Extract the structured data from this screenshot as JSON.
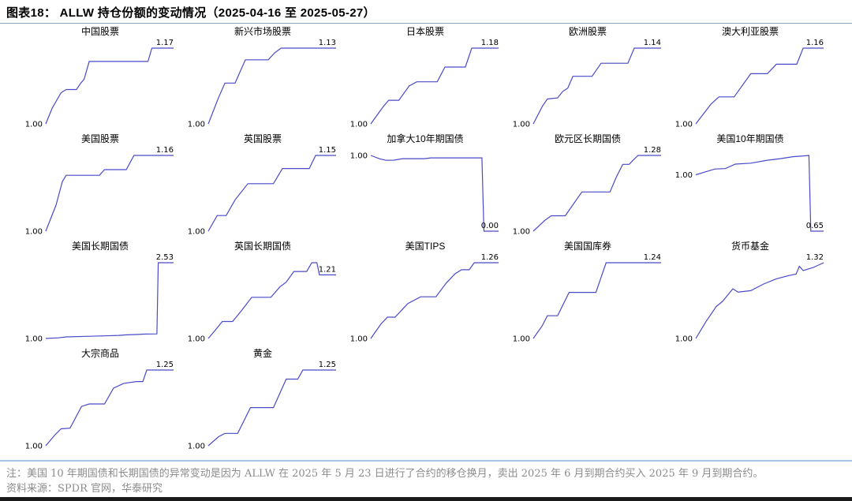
{
  "header": {
    "title": "图表18：  ALLW 持仓份额的变动情况（2025-04-16 至 2025-05-27）"
  },
  "footer": {
    "note": "注：美国 10 年期国债和长期国债的异常变动是因为 ALLW 在 2025 年 5 月 23 日进行了合约的移仓换月，卖出 2025 年 6 月到期合约买入 2025 年 9 月到期合约。",
    "source": "资料来源：SPDR 官网，华泰研究"
  },
  "style": {
    "line_color": "#4A4AC8",
    "title_rule_color": "#8CA8C6",
    "note_rule_color": "#A9C7E7",
    "note_text_color": "#8C8C8C",
    "bottom_bar_color": "#1A1A1A"
  },
  "layout": {
    "columns": 5,
    "rows": 4,
    "grid": false,
    "axes_visible": false,
    "date_range": [
      "2025-04-16",
      "2025-05-27"
    ]
  },
  "chart_data": [
    {
      "type": "line",
      "title": "中国股票",
      "start_label": "1.00",
      "end_label": "1.17",
      "x": [
        0,
        0.05,
        0.12,
        0.16,
        0.24,
        0.27,
        0.3,
        0.34,
        0.8,
        0.83,
        1
      ],
      "values": [
        1.0,
        1.035,
        1.07,
        1.077,
        1.077,
        1.09,
        1.1,
        1.14,
        1.14,
        1.17,
        1.17
      ]
    },
    {
      "type": "line",
      "title": "新兴市场股票",
      "start_label": "1.00",
      "end_label": "1.13",
      "x": [
        0,
        0.08,
        0.13,
        0.21,
        0.29,
        0.47,
        0.52,
        0.57,
        0.62,
        1
      ],
      "values": [
        1.0,
        1.045,
        1.07,
        1.07,
        1.11,
        1.11,
        1.122,
        1.13,
        1.13,
        1.13
      ]
    },
    {
      "type": "line",
      "title": "日本股票",
      "start_label": "1.00",
      "end_label": "1.18",
      "x": [
        0,
        0.1,
        0.14,
        0.22,
        0.3,
        0.36,
        0.52,
        0.58,
        0.74,
        0.79,
        1
      ],
      "values": [
        1.0,
        1.042,
        1.056,
        1.056,
        1.09,
        1.1,
        1.1,
        1.135,
        1.135,
        1.18,
        1.18
      ]
    },
    {
      "type": "line",
      "title": "欧洲股票",
      "start_label": "1.00",
      "end_label": "1.14",
      "x": [
        0,
        0.07,
        0.11,
        0.19,
        0.23,
        0.27,
        0.31,
        0.46,
        0.53,
        0.74,
        0.79,
        1
      ],
      "values": [
        1.0,
        1.032,
        1.046,
        1.048,
        1.06,
        1.066,
        1.088,
        1.088,
        1.112,
        1.112,
        1.14,
        1.14
      ]
    },
    {
      "type": "line",
      "title": "澳大利亚股票",
      "start_label": "1.00",
      "end_label": "1.16",
      "x": [
        0,
        0.12,
        0.18,
        0.3,
        0.43,
        0.56,
        0.63,
        0.79,
        0.84,
        1
      ],
      "values": [
        1.0,
        1.042,
        1.057,
        1.057,
        1.106,
        1.106,
        1.126,
        1.126,
        1.16,
        1.16
      ]
    },
    {
      "type": "line",
      "title": "美国股票",
      "start_label": "1.00",
      "end_label": "1.16",
      "x": [
        0,
        0.08,
        0.13,
        0.16,
        0.42,
        0.46,
        0.63,
        0.69,
        1
      ],
      "values": [
        1.0,
        1.055,
        1.105,
        1.118,
        1.118,
        1.13,
        1.13,
        1.16,
        1.16
      ]
    },
    {
      "type": "line",
      "title": "英国股票",
      "start_label": "1.00",
      "end_label": "1.15",
      "x": [
        0,
        0.07,
        0.14,
        0.21,
        0.31,
        0.51,
        0.58,
        0.79,
        0.84,
        1
      ],
      "values": [
        1.0,
        1.031,
        1.031,
        1.062,
        1.094,
        1.094,
        1.124,
        1.124,
        1.15,
        1.15
      ]
    },
    {
      "type": "line",
      "title": "加拿大10年期国债",
      "start_label": "1.00",
      "end_label": "0.00",
      "x": [
        0,
        0.07,
        0.12,
        0.18,
        0.25,
        0.42,
        0.47,
        0.87,
        0.885,
        1
      ],
      "values": [
        1.0,
        0.955,
        0.935,
        0.938,
        0.957,
        0.957,
        0.968,
        0.968,
        0.0,
        0.0
      ]
    },
    {
      "type": "line",
      "title": "欧元区长期国债",
      "start_label": "1.00",
      "end_label": "1.28",
      "x": [
        0,
        0.09,
        0.14,
        0.25,
        0.38,
        0.47,
        0.6,
        0.65,
        0.7,
        0.75,
        0.78,
        0.82,
        1
      ],
      "values": [
        1.0,
        1.04,
        1.057,
        1.057,
        1.145,
        1.145,
        1.145,
        1.2,
        1.247,
        1.247,
        1.262,
        1.28,
        1.28
      ]
    },
    {
      "type": "line",
      "title": "美国10年期国债",
      "start_label": "1.00",
      "end_label": "0.65",
      "x": [
        0,
        0.15,
        0.23,
        0.31,
        0.43,
        0.56,
        0.66,
        0.76,
        0.86,
        0.885,
        0.9,
        1
      ],
      "values": [
        1.0,
        1.036,
        1.038,
        1.066,
        1.072,
        1.09,
        1.1,
        1.112,
        1.118,
        1.12,
        0.65,
        0.65
      ]
    },
    {
      "type": "line",
      "title": "美国长期国债",
      "start_label": "1.00",
      "end_label": "2.53",
      "x": [
        0,
        0.1,
        0.16,
        0.32,
        0.46,
        0.57,
        0.62,
        0.72,
        0.78,
        0.87,
        0.88,
        1
      ],
      "values": [
        1.0,
        1.012,
        1.032,
        1.043,
        1.053,
        1.062,
        1.072,
        1.082,
        1.09,
        1.093,
        2.53,
        2.53
      ]
    },
    {
      "type": "line",
      "title": "英国长期国债",
      "start_label": "1.00",
      "end_label": "1.21",
      "x": [
        0,
        0.06,
        0.11,
        0.19,
        0.26,
        0.34,
        0.49,
        0.56,
        0.61,
        0.67,
        0.77,
        0.81,
        0.85,
        0.87,
        1
      ],
      "values": [
        1.0,
        1.03,
        1.056,
        1.056,
        1.092,
        1.136,
        1.136,
        1.17,
        1.186,
        1.221,
        1.221,
        1.25,
        1.25,
        1.21,
        1.21
      ]
    },
    {
      "type": "line",
      "title": "美国TIPS",
      "start_label": "1.00",
      "end_label": "1.26",
      "x": [
        0,
        0.08,
        0.13,
        0.19,
        0.29,
        0.39,
        0.51,
        0.59,
        0.66,
        0.71,
        0.77,
        0.81,
        1
      ],
      "values": [
        1.0,
        1.05,
        1.073,
        1.073,
        1.12,
        1.143,
        1.143,
        1.19,
        1.222,
        1.236,
        1.236,
        1.26,
        1.26
      ]
    },
    {
      "type": "line",
      "title": "美国国库券",
      "start_label": "1.00",
      "end_label": "1.24",
      "x": [
        0,
        0.07,
        0.11,
        0.19,
        0.28,
        0.49,
        0.57,
        1
      ],
      "values": [
        1.0,
        1.04,
        1.072,
        1.072,
        1.146,
        1.146,
        1.24,
        1.24
      ]
    },
    {
      "type": "line",
      "title": "货币基金",
      "start_label": "1.00",
      "end_label": "1.32",
      "x": [
        0,
        0.08,
        0.16,
        0.21,
        0.29,
        0.33,
        0.43,
        0.53,
        0.63,
        0.73,
        0.785,
        0.81,
        0.84,
        0.92,
        1
      ],
      "values": [
        1.0,
        1.072,
        1.135,
        1.157,
        1.21,
        1.196,
        1.202,
        1.23,
        1.252,
        1.266,
        1.272,
        1.305,
        1.287,
        1.3,
        1.32
      ]
    },
    {
      "type": "line",
      "title": "大宗商品",
      "start_label": "1.00",
      "end_label": "1.25",
      "x": [
        0,
        0.07,
        0.12,
        0.19,
        0.28,
        0.34,
        0.46,
        0.53,
        0.61,
        0.71,
        0.76,
        0.79,
        1
      ],
      "values": [
        1.0,
        1.035,
        1.056,
        1.058,
        1.13,
        1.138,
        1.138,
        1.19,
        1.206,
        1.212,
        1.212,
        1.25,
        1.25
      ]
    },
    {
      "type": "line",
      "title": "黄金",
      "start_label": "1.00",
      "end_label": "1.25",
      "x": [
        0,
        0.08,
        0.13,
        0.23,
        0.33,
        0.51,
        0.61,
        0.7,
        0.74,
        1
      ],
      "values": [
        1.0,
        1.03,
        1.041,
        1.041,
        1.126,
        1.126,
        1.22,
        1.22,
        1.25,
        1.25
      ]
    }
  ]
}
